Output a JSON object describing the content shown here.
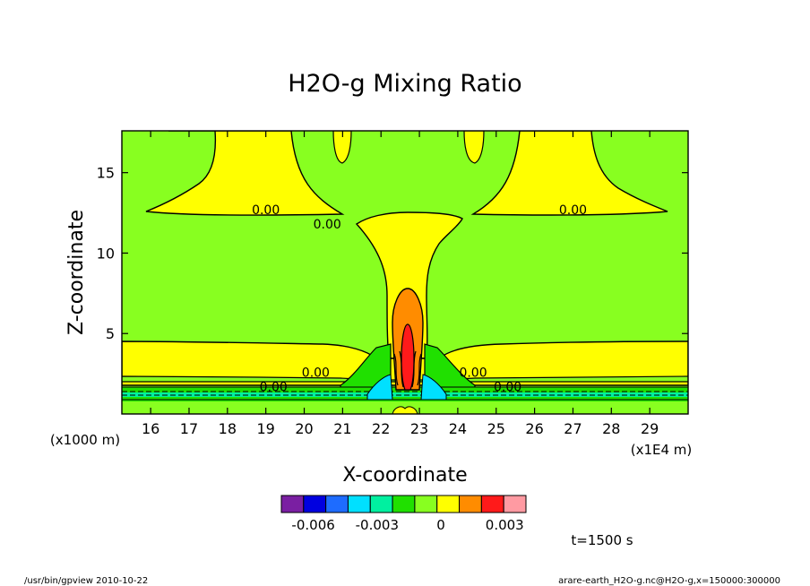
{
  "chart_data": {
    "type": "heatmap",
    "title": "H2O-g Mixing Ratio",
    "xlabel": "X-coordinate",
    "ylabel": "Z-coordinate",
    "x_unit": "(x1E4 m)",
    "y_unit": "(x1000 m)",
    "xlim": [
      15.25,
      30.0
    ],
    "ylim": [
      0.0,
      17.6
    ],
    "x_ticks": [
      16,
      17,
      18,
      19,
      20,
      21,
      22,
      23,
      24,
      25,
      26,
      27,
      28,
      29
    ],
    "y_ticks": [
      5,
      10,
      15
    ],
    "colorbar": {
      "colors": [
        "#7a1fa2",
        "#0000e0",
        "#1e6cff",
        "#00e0ff",
        "#00f0a0",
        "#20e000",
        "#88ff20",
        "#ffff00",
        "#ff8c00",
        "#ff1a1a",
        "#ff9aa2"
      ],
      "tick_labels": [
        "-0.006",
        "-0.003",
        "0",
        "0.003"
      ],
      "tick_values": [
        -0.006,
        -0.003,
        0,
        0.003
      ]
    },
    "contour_labels": [
      {
        "text": "0.00",
        "x": 19.0,
        "z": 12.7
      },
      {
        "text": "0.00",
        "x": 20.6,
        "z": 11.8
      },
      {
        "text": "0.00",
        "x": 27.0,
        "z": 12.7
      },
      {
        "text": "0.00",
        "x": 20.3,
        "z": 2.6
      },
      {
        "text": "0.00",
        "x": 19.2,
        "z": 1.7
      },
      {
        "text": "0.00",
        "x": 24.4,
        "z": 2.6
      },
      {
        "text": "0.00",
        "x": 25.3,
        "z": 1.7
      }
    ]
  },
  "time_label": "t=1500 s",
  "footer": {
    "left": "/usr/bin/gpview  2010-10-22",
    "right": "arare-earth_H2O-g.nc@H2O-g,x=150000:300000"
  }
}
